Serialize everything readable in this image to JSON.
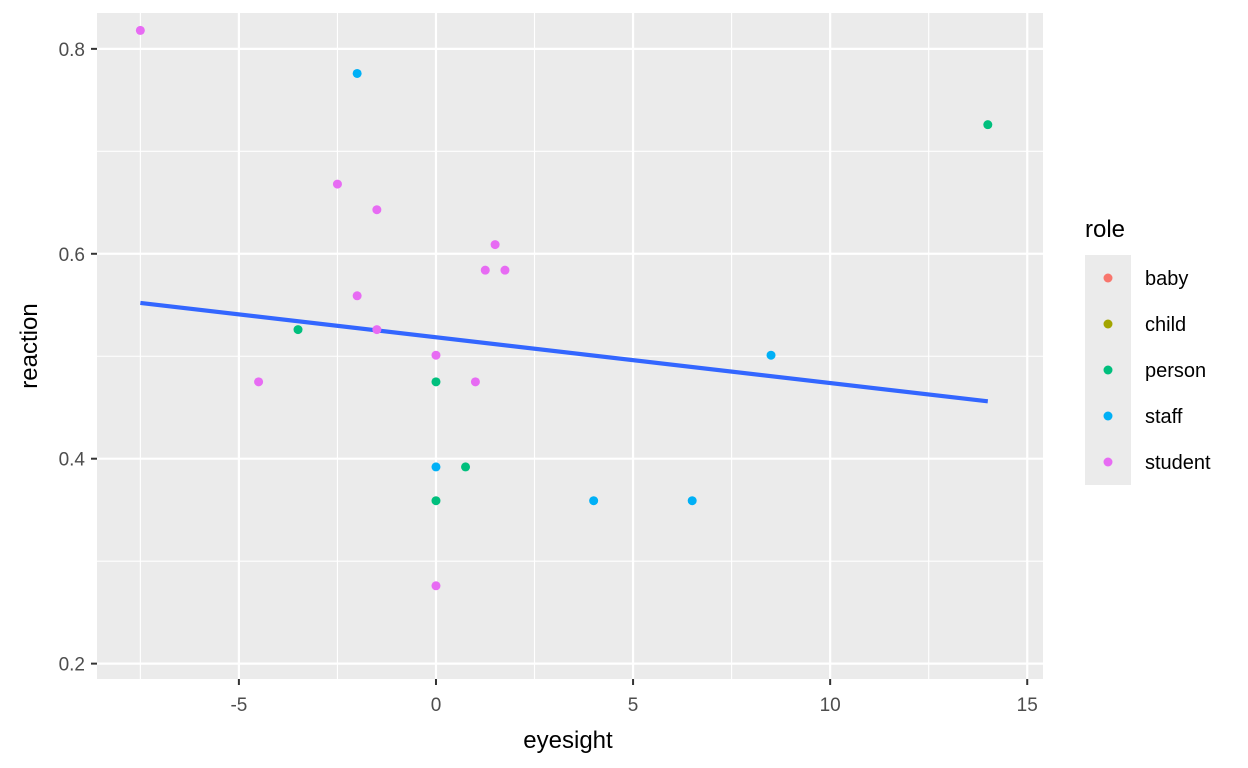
{
  "chart_data": {
    "type": "scatter",
    "title": "",
    "xlabel": "eyesight",
    "ylabel": "reaction",
    "xlim": [
      -8.6,
      15.4
    ],
    "ylim": [
      0.185,
      0.835
    ],
    "x_ticks": [
      -5,
      0,
      5,
      10,
      15
    ],
    "x_tick_labels": [
      "-5",
      "0",
      "5",
      "10",
      "15"
    ],
    "y_ticks": [
      0.2,
      0.4,
      0.6,
      0.8
    ],
    "y_tick_labels": [
      "0.2",
      "0.4",
      "0.6",
      "0.8"
    ],
    "grid": true,
    "panel_background": "#ebebeb",
    "legend": {
      "title": "role",
      "placement": "right",
      "entries": [
        {
          "name": "baby",
          "color": "#F8766D"
        },
        {
          "name": "child",
          "color": "#A3A500"
        },
        {
          "name": "person",
          "color": "#00BF7D"
        },
        {
          "name": "staff",
          "color": "#00B0F6"
        },
        {
          "name": "student",
          "color": "#E76BF3"
        }
      ]
    },
    "series": [
      {
        "name": "baby",
        "color": "#F8766D",
        "points": []
      },
      {
        "name": "child",
        "color": "#A3A500",
        "points": []
      },
      {
        "name": "person",
        "color": "#00BF7D",
        "points": [
          {
            "x": 14,
            "y": 0.726
          },
          {
            "x": -3.5,
            "y": 0.526
          },
          {
            "x": 0,
            "y": 0.475
          },
          {
            "x": 0.75,
            "y": 0.392
          },
          {
            "x": 0,
            "y": 0.359
          }
        ]
      },
      {
        "name": "staff",
        "color": "#00B0F6",
        "points": [
          {
            "x": -2,
            "y": 0.776
          },
          {
            "x": 8.5,
            "y": 0.501
          },
          {
            "x": 0,
            "y": 0.392
          },
          {
            "x": 4,
            "y": 0.359
          },
          {
            "x": 6.5,
            "y": 0.359
          }
        ]
      },
      {
        "name": "student",
        "color": "#E76BF3",
        "points": [
          {
            "x": -7.5,
            "y": 0.818
          },
          {
            "x": -2.5,
            "y": 0.668
          },
          {
            "x": -1.5,
            "y": 0.643
          },
          {
            "x": 1.5,
            "y": 0.609
          },
          {
            "x": 1.25,
            "y": 0.584
          },
          {
            "x": 1.75,
            "y": 0.584
          },
          {
            "x": -2,
            "y": 0.559
          },
          {
            "x": -1.5,
            "y": 0.526
          },
          {
            "x": 0,
            "y": 0.501
          },
          {
            "x": -4.5,
            "y": 0.475
          },
          {
            "x": 1,
            "y": 0.475
          },
          {
            "x": 0,
            "y": 0.276
          }
        ]
      }
    ],
    "trend_line": {
      "method": "linear",
      "color": "#3366FF",
      "x": [
        -7.5,
        14
      ],
      "y": [
        0.552,
        0.456
      ]
    }
  }
}
